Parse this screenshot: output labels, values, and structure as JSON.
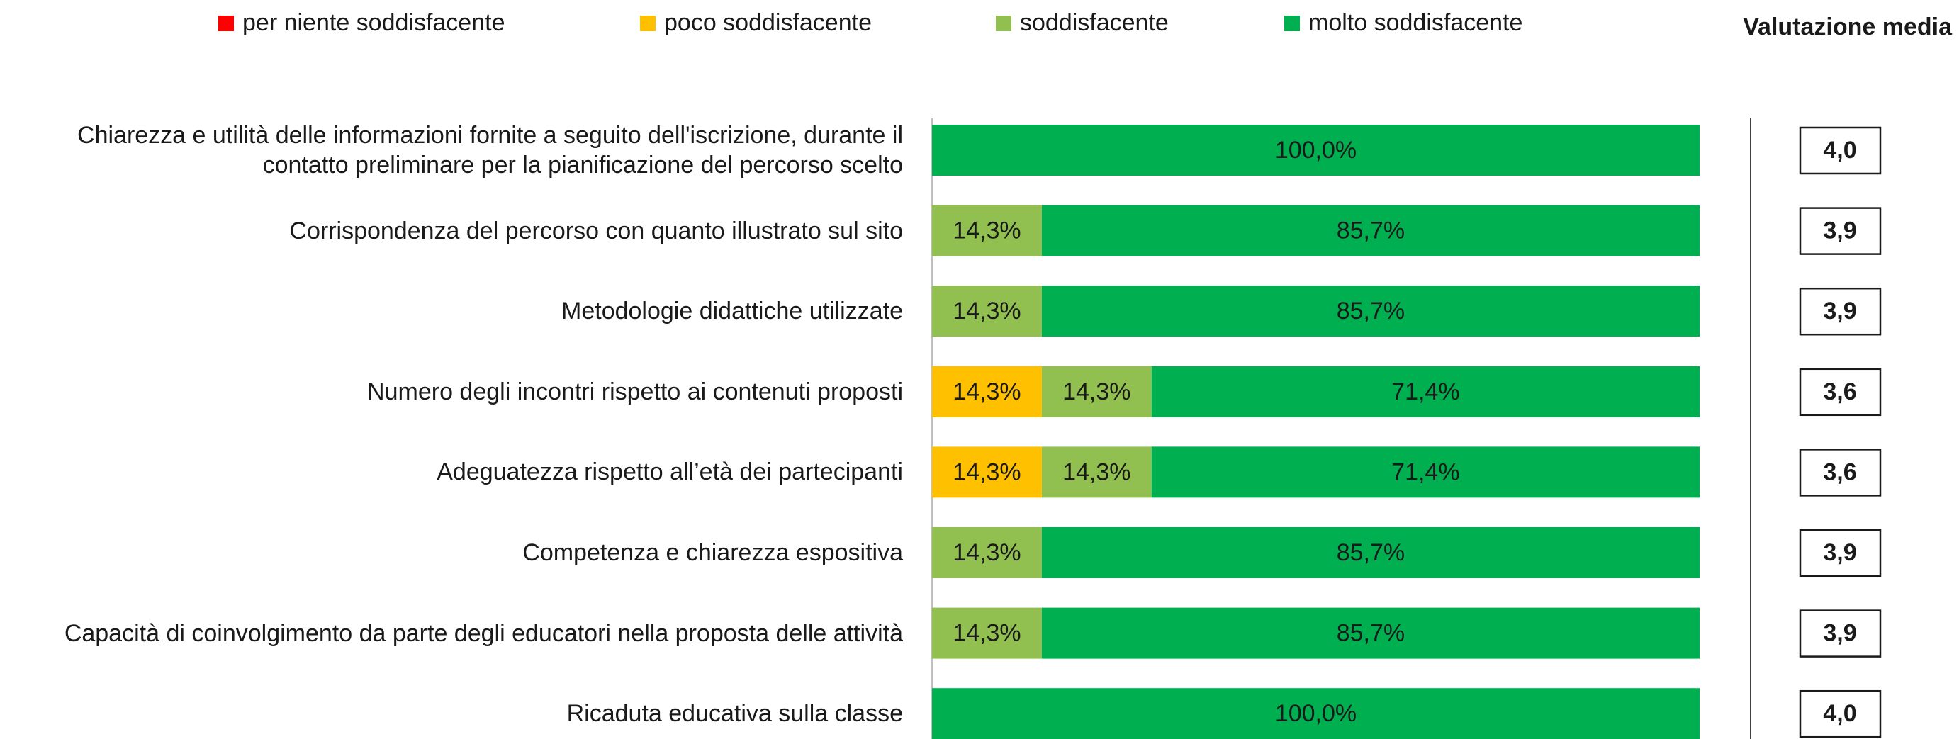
{
  "chart_data": {
    "type": "stacked-bar-horizontal",
    "categories": [
      "Chiarezza e utilità delle informazioni fornite a seguito dell'iscrizione, durante il contatto preliminare per la pianificazione del percorso scelto",
      "Corrispondenza del percorso con quanto illustrato sul sito",
      "Metodologie didattiche utilizzate",
      "Numero degli incontri rispetto ai contenuti proposti",
      "Adeguatezza rispetto all’età dei partecipanti",
      "Competenza e chiarezza espositiva",
      "Capacità di coinvolgimento da parte degli educatori nella proposta delle attività",
      "Ricaduta educativa sulla classe"
    ],
    "xlim": [
      0,
      100
    ],
    "series": [
      {
        "name": "per niente soddisfacente",
        "color": "#ff0000",
        "values": [
          0,
          0,
          0,
          0,
          0,
          0,
          0,
          0
        ],
        "value_labels": [
          null,
          null,
          null,
          null,
          null,
          null,
          null,
          null
        ]
      },
      {
        "name": "poco soddisfacente",
        "color": "#ffc000",
        "values": [
          0,
          0,
          0,
          14.3,
          14.3,
          0,
          0,
          0
        ],
        "value_labels": [
          null,
          null,
          null,
          "14,3%",
          "14,3%",
          null,
          null,
          null
        ]
      },
      {
        "name": "soddisfacente",
        "color": "#92c050",
        "values": [
          0,
          14.3,
          14.3,
          14.3,
          14.3,
          14.3,
          14.3,
          0
        ],
        "value_labels": [
          null,
          "14,3%",
          "14,3%",
          "14,3%",
          "14,3%",
          "14,3%",
          "14,3%",
          null
        ]
      },
      {
        "name": "molto soddisfacente",
        "color": "#00b050",
        "values": [
          100,
          85.7,
          85.7,
          71.4,
          71.4,
          85.7,
          85.7,
          100
        ],
        "value_labels": [
          "100,0%",
          "85,7%",
          "85,7%",
          "71,4%",
          "71,4%",
          "85,7%",
          "85,7%",
          "100,0%"
        ]
      }
    ],
    "averages": {
      "title": "Valutazione media",
      "values": [
        4.0,
        3.9,
        3.9,
        3.6,
        3.6,
        3.9,
        3.9,
        4.0
      ],
      "value_labels": [
        "4,0",
        "3,9",
        "3,9",
        "3,6",
        "3,6",
        "3,9",
        "3,9",
        "4,0"
      ]
    }
  }
}
